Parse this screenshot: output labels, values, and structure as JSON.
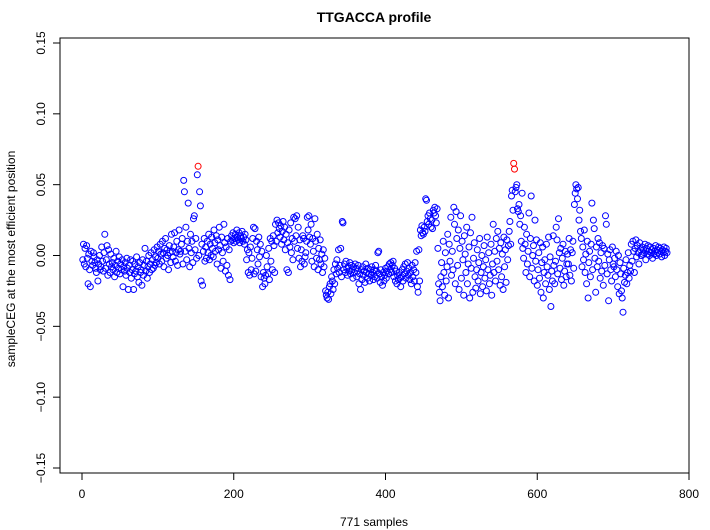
{
  "chart_data": {
    "type": "scatter",
    "title": "TTGACCA profile",
    "xlabel": "771 samples",
    "ylabel": "sampleCEG at the most efficient position",
    "xlim": [
      -29,
      800
    ],
    "ylim": [
      -0.154,
      0.154
    ],
    "x_ticks": [
      0,
      200,
      400,
      600,
      800
    ],
    "x_tick_labels": [
      "0",
      "200",
      "400",
      "600",
      "800"
    ],
    "y_ticks": [
      -0.15,
      -0.1,
      -0.05,
      0.0,
      0.05,
      0.1,
      0.15
    ],
    "y_tick_labels": [
      "−0.15",
      "−0.10",
      "−0.05",
      "0.00",
      "0.05",
      "0.10",
      "0.15"
    ],
    "grid": false,
    "marker": "open-circle",
    "colors": {
      "default": "#0000FF",
      "highlight": "#FF0000"
    },
    "highlight_samples": [
      153,
      569,
      570
    ],
    "y": [
      -0.003,
      0.008,
      -0.006,
      0.005,
      -0.008,
      0.007,
      -0.002,
      -0.02,
      0.001,
      -0.01,
      -0.022,
      0.003,
      -0.004,
      -0.007,
      0.002,
      -0.001,
      -0.005,
      -0.009,
      -0.012,
      -0.003,
      -0.018,
      -0.006,
      0.0,
      -0.01,
      -0.008,
      0.006,
      -0.004,
      -0.011,
      0.002,
      0.015,
      -0.009,
      -0.003,
      0.007,
      -0.014,
      0.004,
      -0.006,
      -0.012,
      0.001,
      -0.008,
      -0.005,
      -0.01,
      -0.002,
      -0.015,
      -0.007,
      0.003,
      -0.012,
      -0.004,
      -0.009,
      -0.001,
      -0.013,
      -0.006,
      -0.01,
      -0.003,
      -0.022,
      -0.008,
      -0.011,
      -0.005,
      -0.014,
      -0.002,
      -0.009,
      -0.024,
      -0.007,
      -0.012,
      -0.003,
      -0.016,
      -0.01,
      -0.004,
      -0.024,
      -0.013,
      -0.006,
      -0.011,
      -0.001,
      -0.015,
      -0.008,
      -0.019,
      -0.005,
      -0.012,
      -0.01,
      -0.021,
      -0.003,
      -0.014,
      -0.007,
      0.005,
      -0.011,
      -0.004,
      -0.016,
      -0.008,
      0.0,
      -0.012,
      -0.006,
      0.002,
      -0.01,
      -0.003,
      -0.009,
      0.004,
      -0.007,
      -0.001,
      -0.005,
      0.006,
      -0.002,
      0.003,
      -0.006,
      0.008,
      0.001,
      -0.004,
      0.01,
      0.002,
      -0.008,
      0.005,
      0.012,
      -0.002,
      0.004,
      0.0,
      -0.01,
      0.007,
      0.002,
      -0.005,
      0.015,
      0.003,
      -0.001,
      0.006,
      0.016,
      -0.004,
      0.002,
      0.01,
      -0.007,
      0.004,
      0.018,
      0.001,
      0.003,
      0.008,
      0.012,
      -0.006,
      0.053,
      0.045,
      0.003,
      0.02,
      -0.003,
      0.01,
      0.037,
      0.005,
      -0.008,
      0.015,
      0.002,
      0.01,
      -0.005,
      0.026,
      0.028,
      0.004,
      0.012,
      -0.002,
      0.057,
      0.063,
      0.0,
      0.045,
      0.035,
      -0.018,
      0.008,
      -0.021,
      0.003,
      0.012,
      -0.004,
      0.006,
      -0.002,
      0.01,
      0.002,
      0.015,
      -0.003,
      0.008,
      0.0,
      0.013,
      0.005,
      -0.001,
      0.018,
      0.009,
      0.003,
      0.014,
      -0.006,
      0.011,
      0.004,
      0.02,
      0.007,
      -0.009,
      0.013,
      0.002,
      -0.004,
      0.022,
      0.009,
      -0.011,
      0.006,
      -0.007,
      0.012,
      -0.014,
      0.004,
      -0.017,
      0.01,
      0.014,
      0.011,
      0.016,
      0.009,
      0.012,
      0.015,
      0.01,
      0.018,
      0.013,
      0.011,
      0.016,
      0.009,
      0.014,
      0.012,
      0.017,
      0.01,
      0.013,
      0.008,
      0.015,
      0.011,
      -0.003,
      0.004,
      -0.012,
      0.002,
      -0.014,
      0.006,
      -0.01,
      -0.002,
      0.012,
      0.02,
      -0.013,
      0.019,
      -0.011,
      0.01,
      0.004,
      -0.006,
      0.013,
      -0.001,
      0.008,
      -0.015,
      0.003,
      -0.022,
      -0.012,
      -0.016,
      -0.02,
      -0.014,
      0.0,
      -0.008,
      -0.013,
      0.005,
      -0.017,
      0.012,
      -0.004,
      0.01,
      -0.01,
      0.014,
      0.007,
      -0.012,
      0.022,
      0.01,
      0.025,
      0.016,
      0.023,
      0.019,
      0.013,
      0.021,
      0.008,
      0.017,
      0.024,
      0.011,
      0.02,
      0.004,
      0.015,
      -0.01,
      0.009,
      -0.012,
      0.018,
      0.006,
      0.023,
      0.002,
      0.012,
      -0.003,
      0.027,
      0.01,
      0.026,
      0.014,
      0.028,
      0.005,
      0.02,
      -0.002,
      0.011,
      -0.008,
      0.004,
      -0.004,
      0.014,
      0.012,
      -0.006,
      -0.001,
      0.002,
      0.01,
      0.027,
      0.018,
      0.028,
      0.013,
      0.008,
      0.022,
      -0.004,
      0.012,
      0.003,
      -0.008,
      0.026,
      0.01,
      -0.002,
      0.015,
      -0.01,
      0.005,
      -0.003,
      0.011,
      -0.006,
      0.001,
      -0.012,
      0.004,
      -0.008,
      -0.002,
      -0.025,
      -0.028,
      -0.03,
      -0.026,
      -0.031,
      -0.022,
      -0.02,
      -0.027,
      -0.015,
      -0.018,
      -0.024,
      -0.01,
      -0.02,
      -0.006,
      -0.013,
      -0.003,
      -0.009,
      0.004,
      -0.012,
      -0.007,
      0.005,
      -0.015,
      0.024,
      0.023,
      -0.01,
      -0.006,
      -0.012,
      -0.004,
      -0.009,
      -0.014,
      -0.008,
      -0.011,
      -0.005,
      -0.013,
      -0.007,
      -0.01,
      -0.016,
      -0.008,
      -0.012,
      -0.006,
      -0.009,
      -0.015,
      -0.011,
      -0.007,
      -0.02,
      -0.013,
      -0.024,
      -0.01,
      -0.017,
      -0.008,
      -0.014,
      -0.011,
      -0.019,
      -0.006,
      -0.012,
      -0.016,
      -0.009,
      -0.013,
      -0.018,
      -0.01,
      -0.014,
      -0.008,
      -0.012,
      -0.017,
      -0.01,
      -0.015,
      -0.007,
      -0.011,
      -0.016,
      0.002,
      0.003,
      -0.013,
      -0.019,
      -0.01,
      -0.015,
      -0.021,
      -0.012,
      -0.018,
      -0.014,
      -0.009,
      -0.016,
      -0.011,
      -0.008,
      -0.013,
      -0.006,
      -0.01,
      -0.005,
      -0.012,
      -0.007,
      -0.004,
      -0.015,
      -0.009,
      -0.018,
      -0.011,
      -0.02,
      -0.014,
      -0.017,
      -0.012,
      -0.016,
      -0.022,
      -0.015,
      -0.01,
      -0.018,
      -0.008,
      -0.013,
      -0.006,
      -0.016,
      -0.011,
      -0.005,
      -0.014,
      -0.009,
      -0.017,
      -0.012,
      -0.02,
      -0.007,
      -0.015,
      -0.01,
      -0.018,
      -0.005,
      -0.012,
      0.003,
      -0.022,
      -0.026,
      0.004,
      -0.018,
      0.018,
      0.014,
      0.021,
      0.016,
      0.015,
      0.02,
      0.017,
      0.04,
      0.039,
      0.024,
      0.028,
      0.022,
      0.03,
      0.026,
      0.02,
      0.025,
      0.019,
      0.032,
      0.03,
      0.034,
      0.028,
      0.023,
      0.033,
      0.005,
      -0.02,
      -0.026,
      -0.032,
      -0.015,
      -0.005,
      -0.022,
      0.01,
      -0.012,
      -0.028,
      0.002,
      -0.018,
      -0.008,
      0.015,
      -0.03,
      0.008,
      -0.004,
      0.027,
      -0.014,
      0.003,
      -0.01,
      0.034,
      0.022,
      -0.02,
      0.031,
      0.012,
      -0.007,
      0.018,
      -0.024,
      0.005,
      0.028,
      -0.016,
      0.01,
      -0.003,
      -0.028,
      0.014,
      0.001,
      -0.012,
      0.02,
      -0.02,
      -0.006,
      0.006,
      -0.03,
      0.016,
      -0.009,
      0.027,
      -0.026,
      -0.002,
      0.009,
      -0.015,
      -0.023,
      -0.01,
      0.004,
      -0.018,
      -0.005,
      0.012,
      -0.027,
      -0.012,
      0.0,
      -0.022,
      -0.008,
      0.007,
      -0.016,
      -0.003,
      -0.025,
      0.013,
      -0.01,
      0.002,
      -0.02,
      -0.014,
      0.008,
      -0.028,
      -0.006,
      0.022,
      -0.012,
      0.003,
      -0.018,
      0.012,
      -0.004,
      0.017,
      -0.01,
      0.005,
      -0.021,
      0.009,
      -0.015,
      0.001,
      -0.024,
      0.013,
      -0.008,
      0.004,
      -0.019,
      0.011,
      -0.003,
      0.007,
      0.017,
      0.024,
      0.008,
      0.042,
      0.046,
      0.032,
      0.065,
      0.061,
      0.045,
      0.048,
      0.05,
      0.033,
      0.031,
      0.036,
      0.022,
      0.028,
      0.01,
      0.044,
      0.005,
      -0.002,
      0.02,
      0.008,
      -0.012,
      0.015,
      -0.006,
      0.003,
      0.03,
      -0.015,
      0.012,
      0.042,
      -0.009,
      0.0,
      0.007,
      -0.018,
      0.025,
      -0.004,
      0.011,
      -0.021,
      -0.01,
      0.002,
      -0.016,
      0.009,
      -0.026,
      -0.005,
      0.006,
      -0.03,
      -0.012,
      -0.003,
      -0.02,
      0.008,
      -0.008,
      -0.014,
      0.013,
      -0.024,
      -0.001,
      -0.036,
      -0.011,
      -0.018,
      0.014,
      -0.007,
      -0.02,
      -0.004,
      0.02,
      0.011,
      -0.013,
      0.026,
      0.002,
      -0.009,
      0.005,
      -0.017,
      -0.002,
      0.008,
      -0.021,
      -0.011,
      0.003,
      -0.015,
      -0.006,
      0.001,
      -0.006,
      0.012,
      -0.014,
      0.004,
      -0.018,
      0.002,
      0.01,
      -0.009,
      0.036,
      0.044,
      0.05,
      0.047,
      0.04,
      0.048,
      0.025,
      0.032,
      0.017,
      0.012,
      -0.008,
      0.006,
      -0.003,
      0.018,
      -0.012,
      0.001,
      -0.02,
      0.01,
      -0.03,
      -0.005,
      0.003,
      -0.015,
      0.008,
      0.037,
      -0.01,
      0.025,
      0.019,
      -0.002,
      -0.026,
      0.006,
      -0.008,
      0.012,
      -0.004,
      0.009,
      -0.016,
      0.002,
      -0.011,
      0.007,
      -0.021,
      0.005,
      -0.007,
      0.028,
      0.022,
      -0.013,
      0.001,
      -0.032,
      -0.003,
      0.004,
      -0.01,
      -0.018,
      0.006,
      -0.006,
      -0.008,
      -0.002,
      -0.015,
      0.003,
      -0.01,
      -0.022,
      0.0,
      -0.027,
      -0.005,
      -0.013,
      -0.025,
      -0.03,
      -0.04,
      -0.009,
      -0.019,
      -0.014,
      -0.003,
      -0.02,
      -0.012,
      0.002,
      -0.016,
      -0.007,
      -0.011,
      0.008,
      -0.004,
      0.01,
      0.003,
      -0.012,
      0.005,
      0.011,
      -0.001,
      0.007,
      0.002,
      -0.006,
      0.009,
      0.004,
      0.0,
      0.006,
      0.001,
      0.004,
      0.002,
      0.008,
      -0.003,
      0.005,
      0.001,
      0.007,
      0.003,
      0.0,
      0.006,
      0.002,
      0.004,
      -0.002,
      0.005,
      0.001,
      0.003,
      0.007,
      0.0,
      0.004,
      0.002,
      0.006,
      0.001,
      0.005,
      0.003,
      -0.001,
      0.004,
      0.002,
      0.006,
      0.0,
      0.003,
      0.005,
      0.002
    ]
  }
}
